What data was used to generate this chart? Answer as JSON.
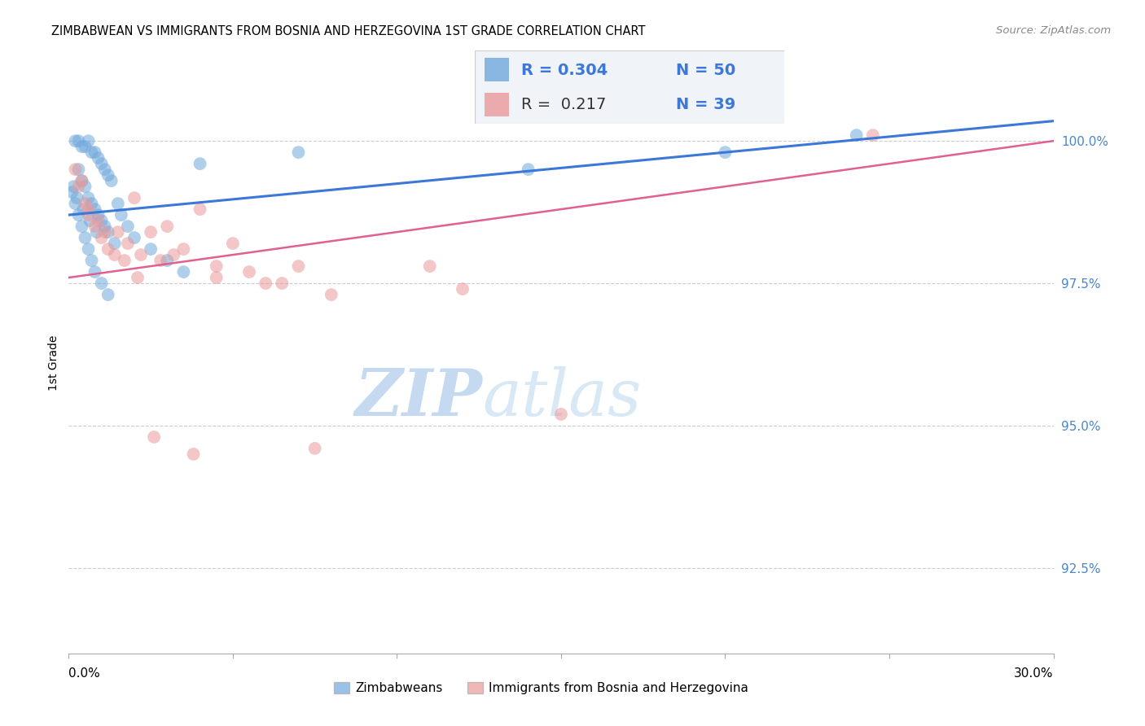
{
  "title": "ZIMBABWEAN VS IMMIGRANTS FROM BOSNIA AND HERZEGOVINA 1ST GRADE CORRELATION CHART",
  "source": "Source: ZipAtlas.com",
  "ylabel": "1st Grade",
  "yticks": [
    92.5,
    95.0,
    97.5,
    100.0
  ],
  "ytick_labels": [
    "92.5%",
    "95.0%",
    "97.5%",
    "100.0%"
  ],
  "xlim": [
    0.0,
    30.0
  ],
  "ylim": [
    91.0,
    101.2
  ],
  "legend_r1": "R = 0.304",
  "legend_n1": "N = 50",
  "legend_r2": "R =  0.217",
  "legend_n2": "N = 39",
  "blue_color": "#6fa8dc",
  "pink_color": "#ea9999",
  "line_blue": "#3c78d8",
  "line_pink": "#e06090",
  "watermark_zip": "ZIP",
  "watermark_atlas": "atlas",
  "watermark_color_zip": "#c8dff5",
  "watermark_color_atlas": "#c8dff5",
  "blue_scatter_x": [
    0.2,
    0.3,
    0.4,
    0.5,
    0.6,
    0.7,
    0.8,
    0.9,
    1.0,
    1.1,
    1.2,
    1.3,
    0.3,
    0.4,
    0.5,
    0.6,
    0.7,
    0.8,
    0.9,
    1.0,
    1.1,
    1.2,
    1.4,
    1.5,
    1.6,
    1.8,
    2.0,
    2.5,
    3.0,
    3.5,
    0.1,
    0.2,
    0.3,
    0.4,
    0.5,
    0.6,
    0.7,
    0.8,
    1.0,
    1.2,
    4.0,
    7.0,
    14.0,
    20.0,
    24.0,
    0.15,
    0.25,
    0.45,
    0.65,
    0.85
  ],
  "blue_scatter_y": [
    100.0,
    100.0,
    99.9,
    99.9,
    100.0,
    99.8,
    99.8,
    99.7,
    99.6,
    99.5,
    99.4,
    99.3,
    99.5,
    99.3,
    99.2,
    99.0,
    98.9,
    98.8,
    98.7,
    98.6,
    98.5,
    98.4,
    98.2,
    98.9,
    98.7,
    98.5,
    98.3,
    98.1,
    97.9,
    97.7,
    99.1,
    98.9,
    98.7,
    98.5,
    98.3,
    98.1,
    97.9,
    97.7,
    97.5,
    97.3,
    99.6,
    99.8,
    99.5,
    99.8,
    100.1,
    99.2,
    99.0,
    98.8,
    98.6,
    98.4
  ],
  "pink_scatter_x": [
    0.2,
    0.3,
    0.5,
    0.6,
    0.8,
    1.0,
    1.2,
    1.5,
    1.8,
    2.0,
    2.2,
    2.5,
    2.8,
    3.0,
    3.5,
    4.0,
    4.5,
    5.0,
    5.5,
    6.0,
    6.5,
    7.0,
    8.0,
    0.4,
    0.6,
    0.9,
    1.1,
    1.4,
    1.7,
    2.1,
    2.6,
    3.2,
    3.8,
    11.0,
    15.0,
    24.5,
    4.5,
    7.5,
    12.0
  ],
  "pink_scatter_y": [
    99.5,
    99.2,
    98.9,
    98.7,
    98.5,
    98.3,
    98.1,
    98.4,
    98.2,
    99.0,
    98.0,
    98.4,
    97.9,
    98.5,
    98.1,
    98.8,
    97.8,
    98.2,
    97.7,
    97.5,
    97.5,
    97.8,
    97.3,
    99.3,
    98.8,
    98.6,
    98.4,
    98.0,
    97.9,
    97.6,
    94.8,
    98.0,
    94.5,
    97.8,
    95.2,
    100.1,
    97.6,
    94.6,
    97.4
  ],
  "blue_line_x": [
    0.0,
    30.0
  ],
  "blue_line_y": [
    98.7,
    100.35
  ],
  "pink_line_x": [
    0.0,
    30.0
  ],
  "pink_line_y": [
    97.6,
    100.0
  ],
  "legend_label1": "Zimbabweans",
  "legend_label2": "Immigrants from Bosnia and Herzegovina"
}
